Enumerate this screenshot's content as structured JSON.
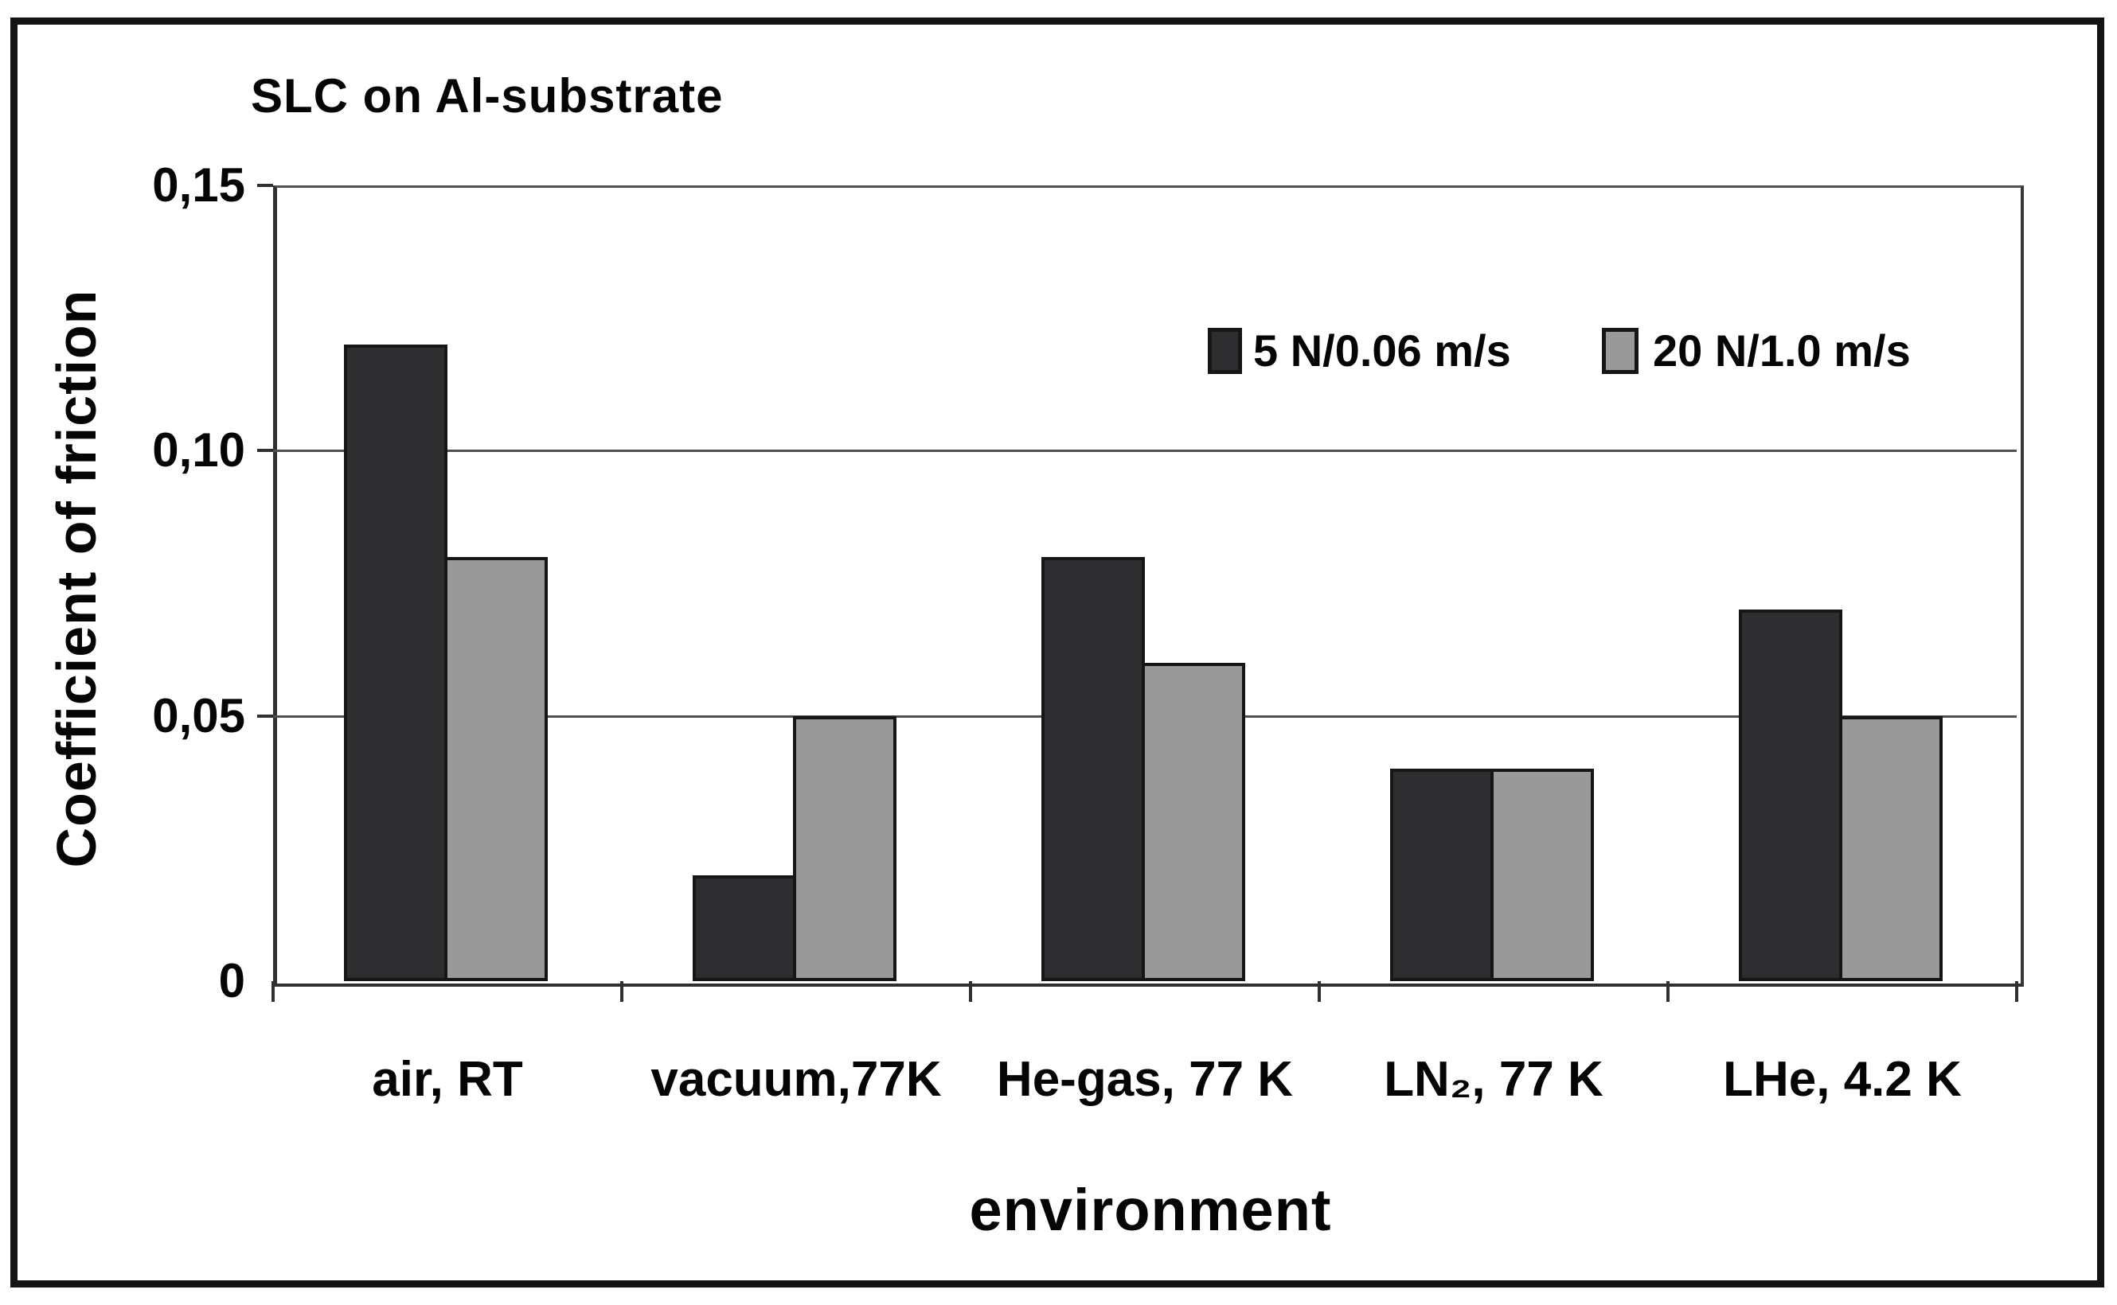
{
  "chart": {
    "title": "SLC on Al-substrate",
    "background": "#ffffff",
    "frame_color": "#141414",
    "text_color": "#050505"
  },
  "chart_data": {
    "type": "bar",
    "title": "SLC on Al-substrate",
    "xlabel": "environment",
    "ylabel": "Coefficient of friction",
    "categories": [
      "air, RT",
      "vacuum,77K",
      "He-gas, 77 K",
      "LN₂, 77 K",
      "LHe, 4.2 K"
    ],
    "series": [
      {
        "name": "5 N/0.06 m/s",
        "color": "#2e2e30",
        "values": [
          0.12,
          0.02,
          0.08,
          0.04,
          0.07
        ]
      },
      {
        "name": "20 N/1.0 m/s",
        "color": "#999999",
        "values": [
          0.08,
          0.05,
          0.06,
          0.04,
          0.05
        ]
      }
    ],
    "ylim": [
      0,
      0.15
    ],
    "yticks": [
      {
        "value": 0,
        "label": "0"
      },
      {
        "value": 0.05,
        "label": "0,05"
      },
      {
        "value": 0.1,
        "label": "0,10"
      },
      {
        "value": 0.15,
        "label": "0,15"
      }
    ],
    "grid": true,
    "legend_position": "top-right-inside",
    "bar_border_color": "#161616",
    "gridline_color": "#4f4f4f",
    "axis_color": "#303030",
    "decimal_separator": ","
  }
}
